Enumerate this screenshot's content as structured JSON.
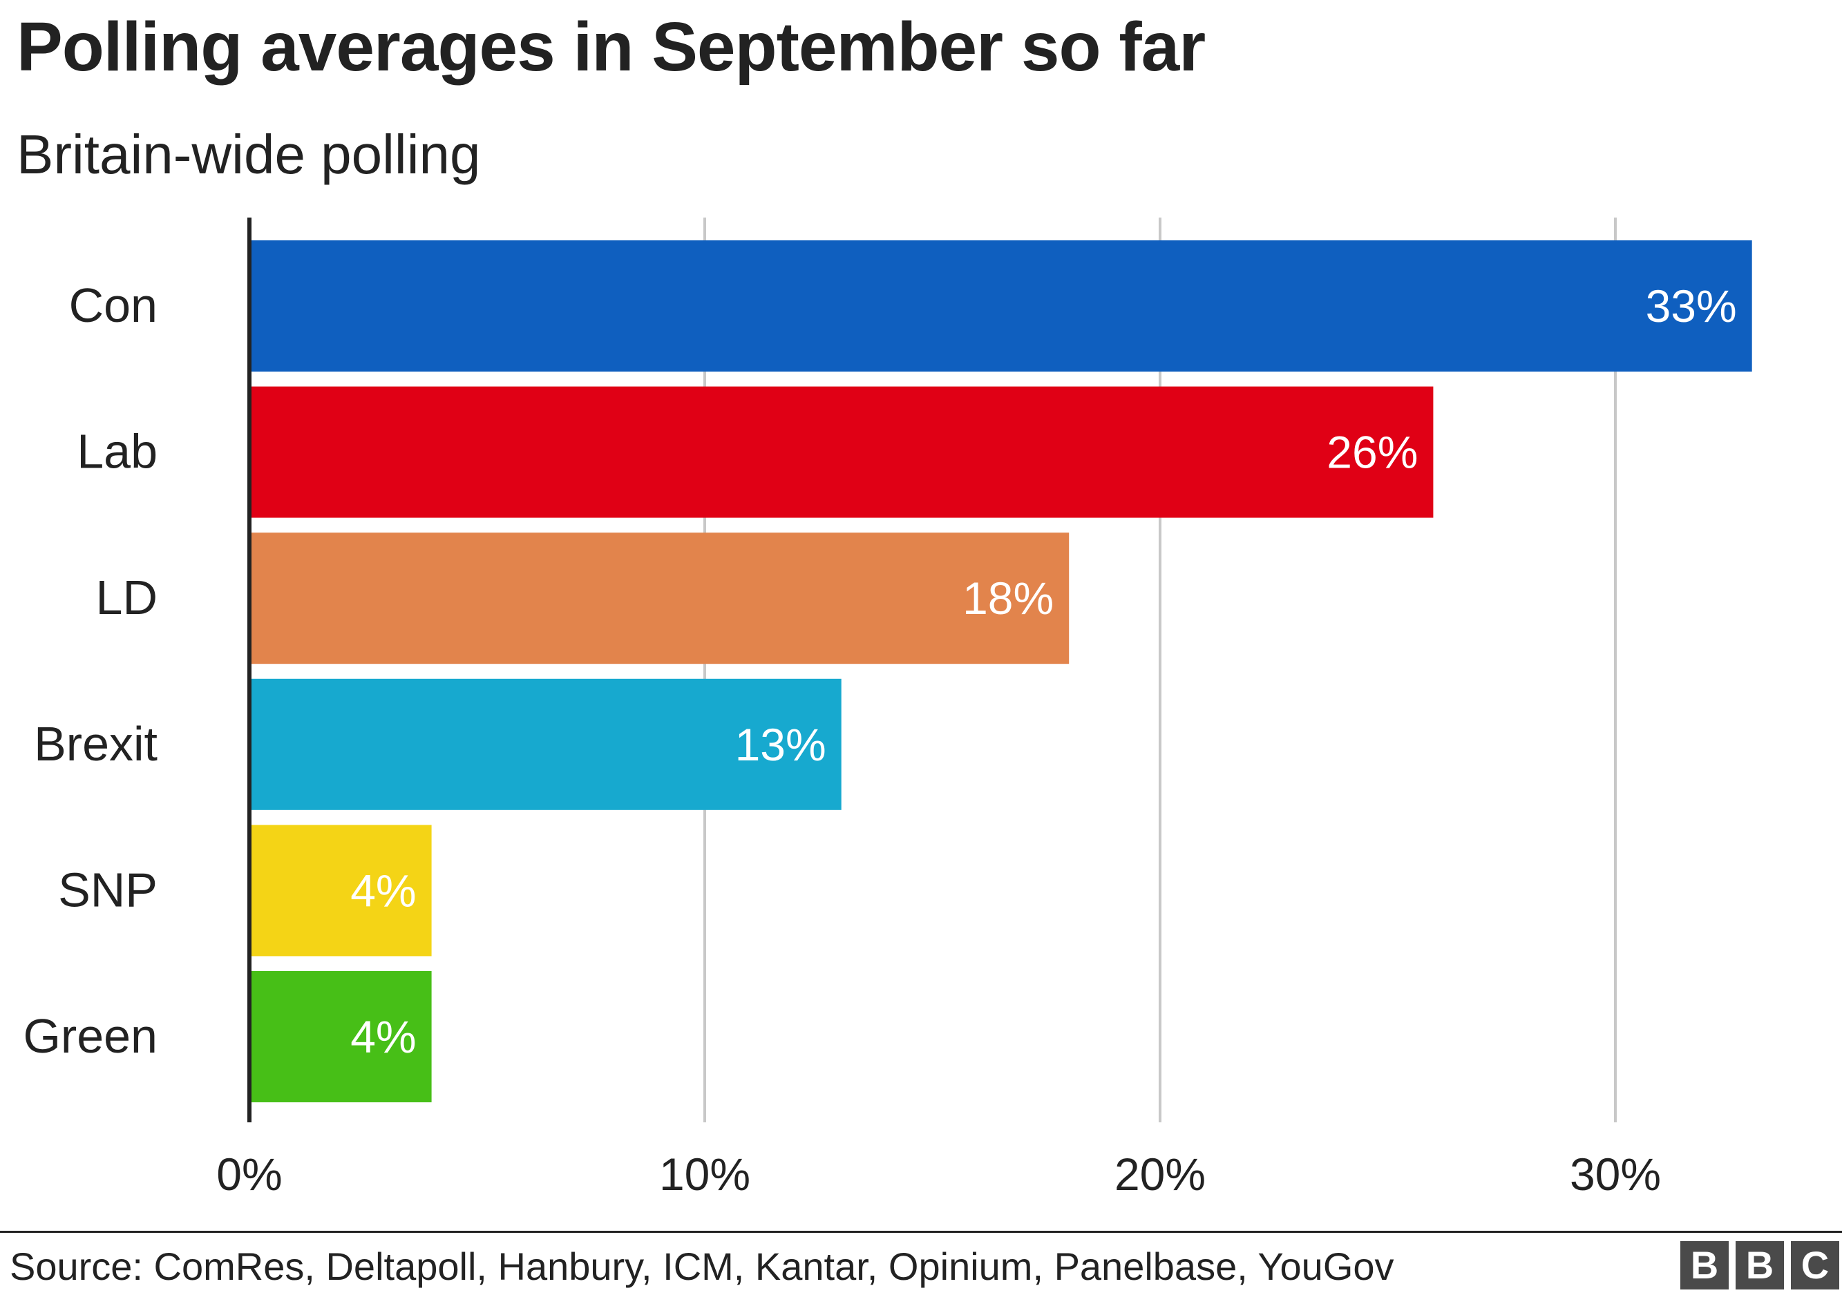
{
  "title": "Polling averages in September so far",
  "subtitle": "Britain-wide polling",
  "source": "Source: ComRes, Deltapoll, Hanbury, ICM, Kantar, Opinium, Panelbase, YouGov",
  "logo": [
    "B",
    "B",
    "C"
  ],
  "colors": {
    "grid": "#c8c8c8",
    "axis": "#222222",
    "label_text": "#222222",
    "value_text": "#ffffff"
  },
  "chart_data": {
    "type": "bar",
    "orientation": "horizontal",
    "title": "Polling averages in September so far",
    "subtitle": "Britain-wide polling",
    "categories": [
      "Con",
      "Lab",
      "LD",
      "Brexit",
      "SNP",
      "Green"
    ],
    "values": [
      33,
      26,
      18,
      13,
      4,
      4
    ],
    "value_labels": [
      "33%",
      "26%",
      "18%",
      "13%",
      "4%",
      "4%"
    ],
    "colors": [
      "#0f5fbf",
      "#e00015",
      "#e2844c",
      "#17a9cf",
      "#f4d416",
      "#47bf17"
    ],
    "xlim": [
      0,
      34
    ],
    "xticks": [
      0,
      10,
      20,
      30
    ],
    "xtick_labels": [
      "0%",
      "10%",
      "20%",
      "30%"
    ],
    "grid": true,
    "legend": "none"
  }
}
